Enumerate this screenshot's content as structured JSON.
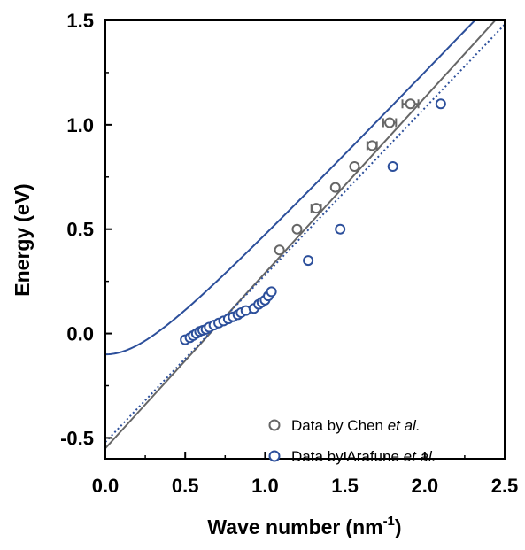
{
  "chart_data": {
    "type": "scatter",
    "xlabel": {
      "text": "Wave number",
      "unit": "nm",
      "unit_exponent": "-1"
    },
    "ylabel": {
      "text": "Energy",
      "unit": "eV"
    },
    "xlim": [
      0.0,
      2.5
    ],
    "ylim": [
      -0.6,
      1.5
    ],
    "xticks": [
      0.0,
      0.5,
      1.0,
      1.5,
      2.0,
      2.5
    ],
    "xtick_labels": [
      "0.0",
      "0.5",
      "1.0",
      "1.5",
      "2.0",
      "2.5"
    ],
    "yticks": [
      -0.5,
      0.0,
      0.5,
      1.0,
      1.5
    ],
    "ytick_labels": [
      "-0.5",
      "0.0",
      "0.5",
      "1.0",
      "1.5"
    ],
    "grid": false,
    "legend_position": "bottom-right",
    "series": [
      {
        "name": "Data by Chen et al.",
        "legend_parts": [
          {
            "text": "Data by Chen ",
            "italic": false
          },
          {
            "text": "et al.",
            "italic": true
          }
        ],
        "color": "#666666",
        "marker": "open-circle",
        "points": [
          {
            "x": 1.09,
            "y": 0.4,
            "xerr": 0
          },
          {
            "x": 1.2,
            "y": 0.5,
            "xerr": 0
          },
          {
            "x": 1.32,
            "y": 0.6,
            "xerr": 0.03
          },
          {
            "x": 1.44,
            "y": 0.7,
            "xerr": 0
          },
          {
            "x": 1.56,
            "y": 0.8,
            "xerr": 0.01
          },
          {
            "x": 1.67,
            "y": 0.9,
            "xerr": 0.03
          },
          {
            "x": 1.78,
            "y": 1.01,
            "xerr": 0.04
          },
          {
            "x": 1.91,
            "y": 1.1,
            "xerr": 0.05
          }
        ],
        "fit_line": {
          "type": "linear",
          "slope": 0.84,
          "intercept": -0.55,
          "style": "solid"
        }
      },
      {
        "name": "Data by Arafune et al.",
        "legend_parts": [
          {
            "text": "Data by Arafune ",
            "italic": false
          },
          {
            "text": "et al.",
            "italic": true
          }
        ],
        "color": "#2c4f9b",
        "marker": "open-circle",
        "points": [
          {
            "x": 0.5,
            "y": -0.03
          },
          {
            "x": 0.53,
            "y": -0.02
          },
          {
            "x": 0.55,
            "y": -0.01
          },
          {
            "x": 0.57,
            "y": 0.0
          },
          {
            "x": 0.59,
            "y": 0.01
          },
          {
            "x": 0.61,
            "y": 0.015
          },
          {
            "x": 0.63,
            "y": 0.02
          },
          {
            "x": 0.65,
            "y": 0.03
          },
          {
            "x": 0.68,
            "y": 0.04
          },
          {
            "x": 0.71,
            "y": 0.05
          },
          {
            "x": 0.74,
            "y": 0.06
          },
          {
            "x": 0.77,
            "y": 0.07
          },
          {
            "x": 0.8,
            "y": 0.08
          },
          {
            "x": 0.83,
            "y": 0.09
          },
          {
            "x": 0.85,
            "y": 0.1
          },
          {
            "x": 0.88,
            "y": 0.11
          },
          {
            "x": 0.93,
            "y": 0.12
          },
          {
            "x": 0.96,
            "y": 0.14
          },
          {
            "x": 0.98,
            "y": 0.15
          },
          {
            "x": 1.0,
            "y": 0.16
          },
          {
            "x": 1.02,
            "y": 0.18
          },
          {
            "x": 1.04,
            "y": 0.2
          },
          {
            "x": 1.27,
            "y": 0.35
          },
          {
            "x": 1.47,
            "y": 0.5
          },
          {
            "x": 1.8,
            "y": 0.8
          },
          {
            "x": 2.1,
            "y": 1.1
          }
        ],
        "fit_curve": {
          "type": "hyperbolic",
          "offset": -0.1,
          "velocity": 0.8,
          "mass_gap": 0.27,
          "style": "solid"
        },
        "asymptote": {
          "type": "linear",
          "slope": 0.8,
          "intercept": -0.52,
          "style": "dotted"
        }
      }
    ]
  }
}
